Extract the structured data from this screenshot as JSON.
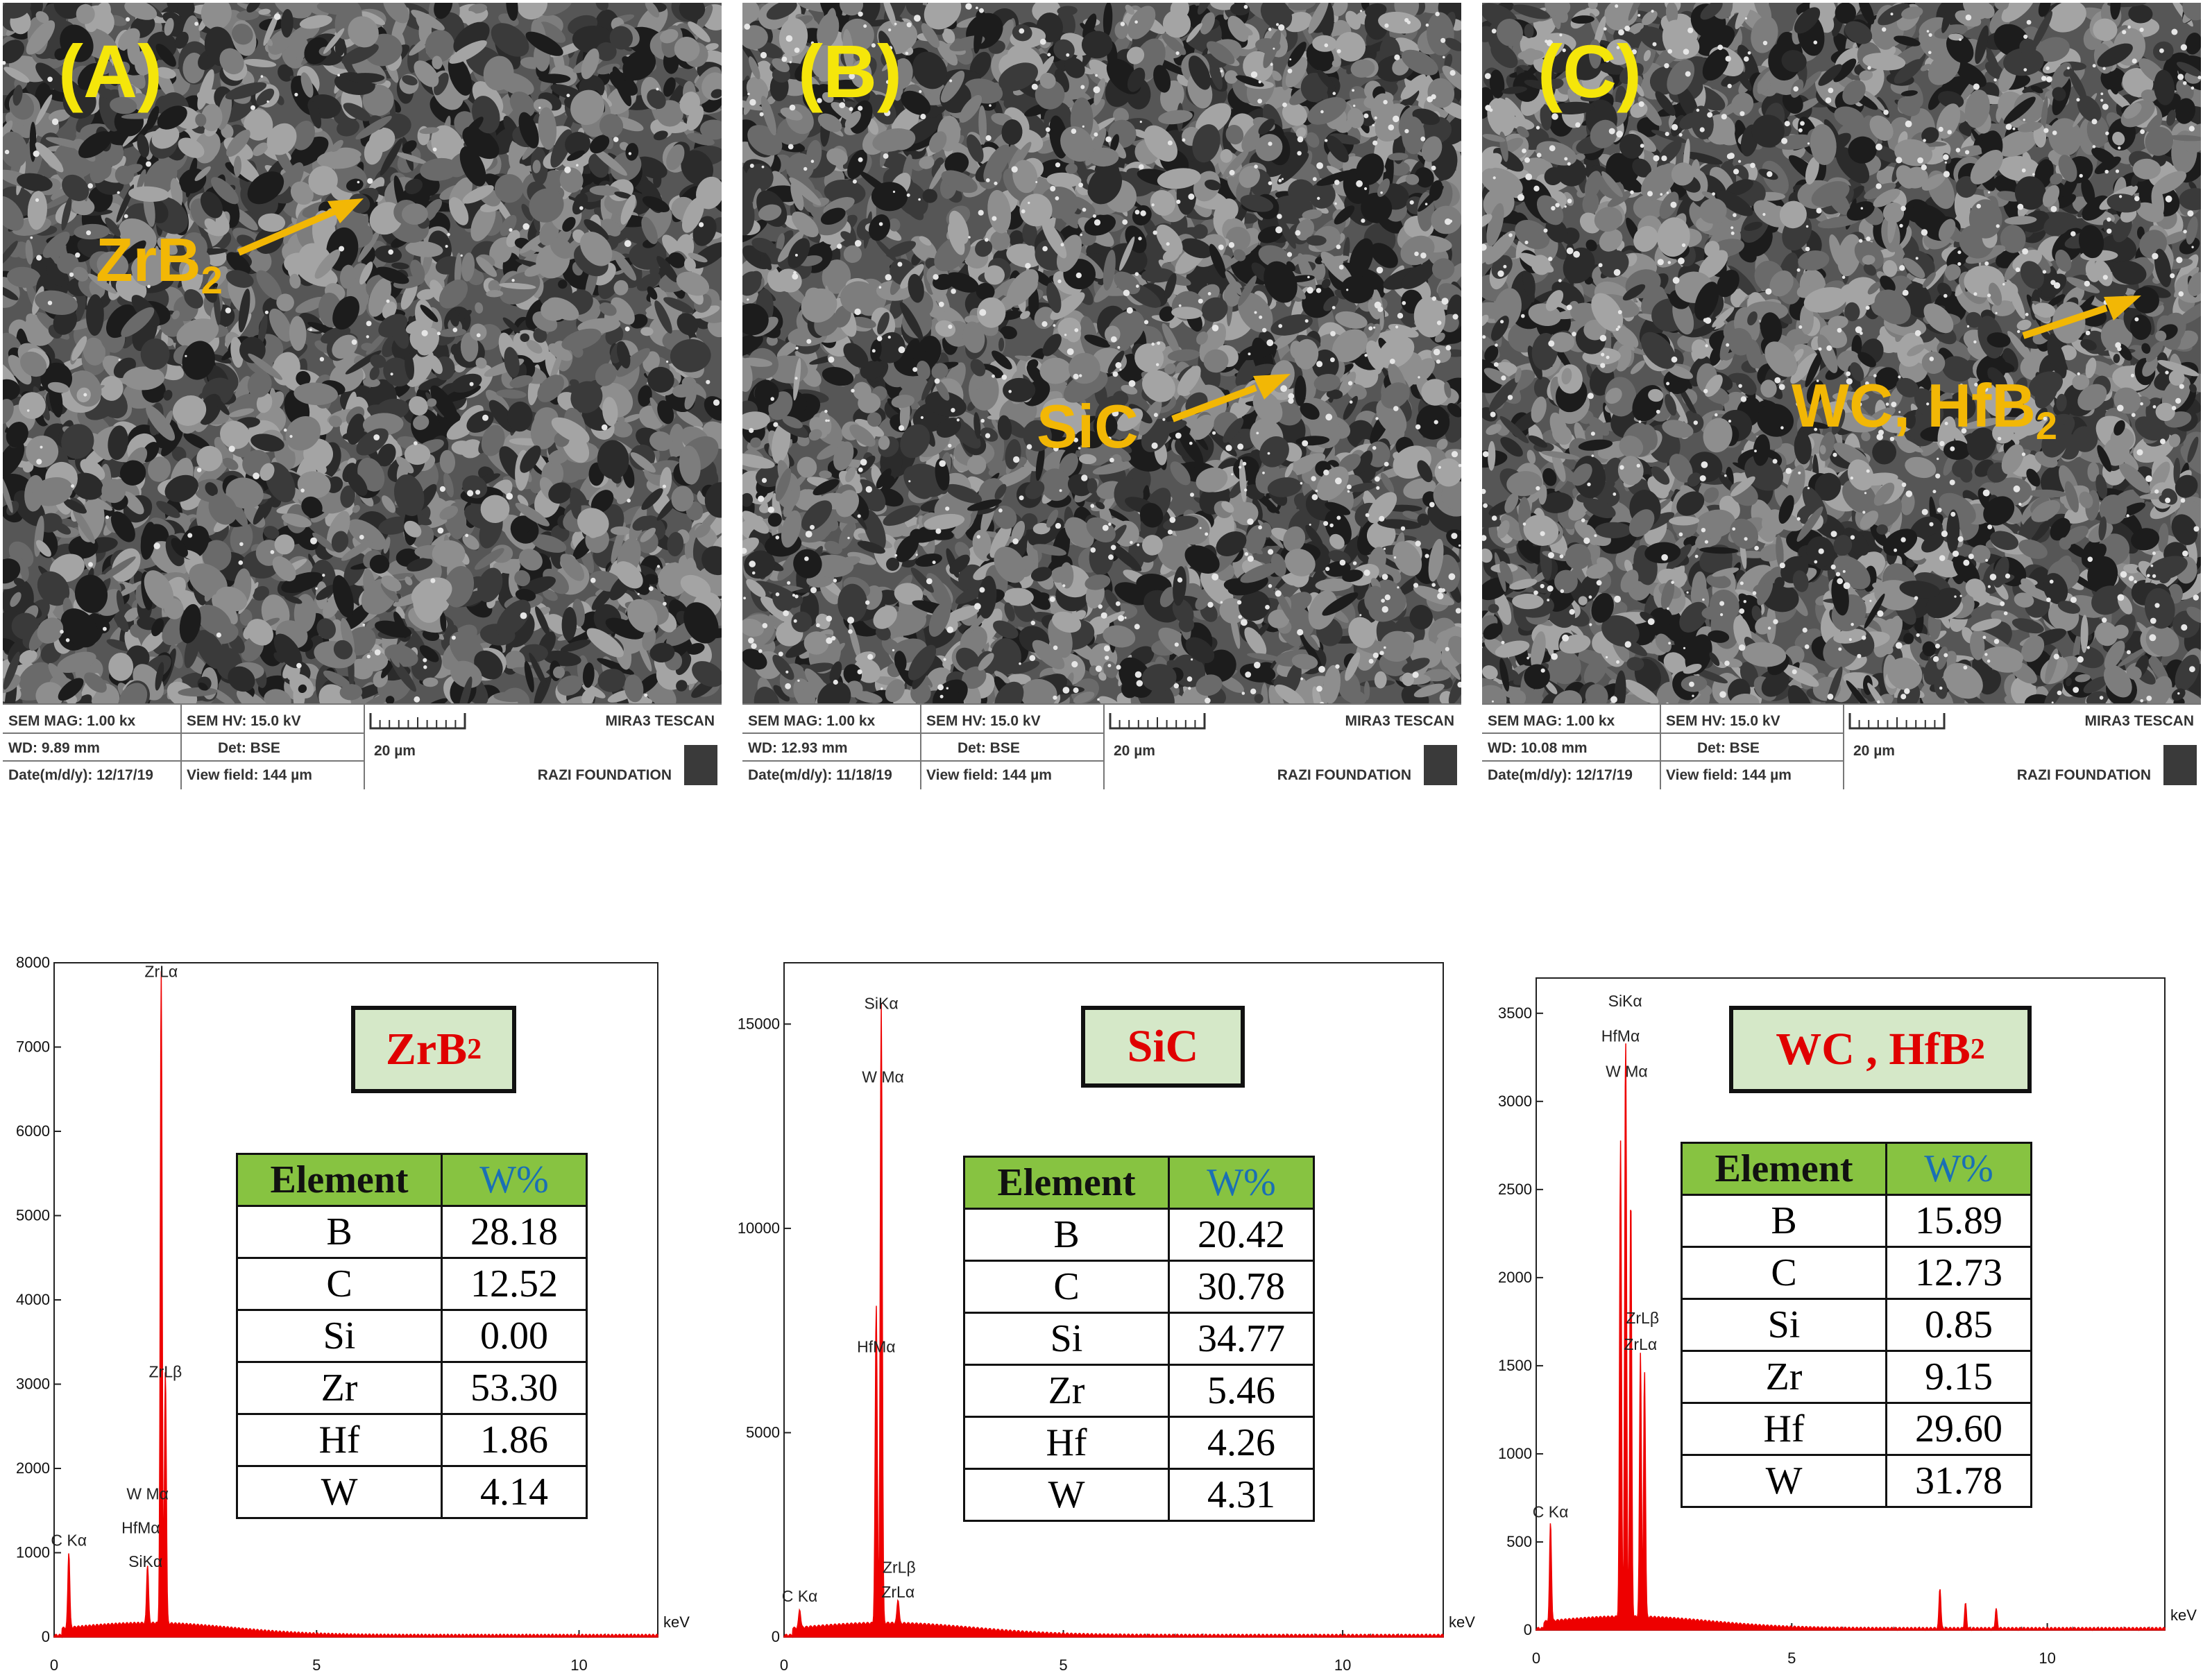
{
  "sem_panels": [
    {
      "letter": "(A)",
      "phase": "ZrB",
      "phase_sub": "2",
      "info": {
        "mag": "SEM MAG: 1.00 kx",
        "hv": "SEM HV: 15.0 kV",
        "wd": "WD: 9.89 mm",
        "det": "Det: BSE",
        "date": "Date(m/d/y): 12/17/19",
        "field": "View field: 144 µm",
        "scale": "20 µm",
        "brand1": "MIRA3 TESCAN",
        "brand2": "RAZI FOUNDATION"
      }
    },
    {
      "letter": "(B)",
      "phase": "SiC",
      "phase_sub": "",
      "info": {
        "mag": "SEM MAG: 1.00 kx",
        "hv": "SEM HV: 15.0 kV",
        "wd": "WD: 12.93 mm",
        "det": "Det: BSE",
        "date": "Date(m/d/y): 11/18/19",
        "field": "View field: 144 µm",
        "scale": "20 µm",
        "brand1": "MIRA3 TESCAN",
        "brand2": "RAZI FOUNDATION"
      }
    },
    {
      "letter": "(C)",
      "phase": "WC, HfB",
      "phase_sub": "2",
      "info": {
        "mag": "SEM MAG: 1.00 kx",
        "hv": "SEM HV: 15.0 kV",
        "wd": "WD: 10.08 mm",
        "det": "Det: BSE",
        "date": "Date(m/d/y): 12/17/19",
        "field": "View field: 144 µm",
        "scale": "20 µm",
        "brand1": "MIRA3 TESCAN",
        "brand2": "RAZI FOUNDATION"
      }
    }
  ],
  "chart_data": [
    {
      "type": "line",
      "xlabel": "keV",
      "xlim": [
        0,
        11.5
      ],
      "ylim": [
        0,
        8000
      ],
      "x_ticks": [
        0,
        5,
        10
      ],
      "y_ticks": [
        0,
        1000,
        2000,
        3000,
        4000,
        5000,
        6000,
        7000,
        8000
      ],
      "peaks": [
        {
          "x": 0.28,
          "y": 900
        },
        {
          "x": 1.78,
          "y": 700
        },
        {
          "x": 2.04,
          "y": 7750
        },
        {
          "x": 2.12,
          "y": 3000
        }
      ],
      "peak_labels": [
        {
          "text": "ZrLα",
          "x": 2.04,
          "y": 7750
        },
        {
          "text": "ZrLβ",
          "x": 2.12,
          "y": 3000
        },
        {
          "text": "W Mα",
          "x": 1.78,
          "y": 1550
        },
        {
          "text": "HfMα",
          "x": 1.65,
          "y": 1150
        },
        {
          "text": "SiKα",
          "x": 1.74,
          "y": 750
        },
        {
          "text": "C Kα",
          "x": 0.28,
          "y": 1000
        }
      ],
      "legend": {
        "text": "ZrB",
        "sub": "2"
      },
      "table": {
        "headers": [
          "Element",
          "W%"
        ],
        "rows": [
          [
            "B",
            "28.18"
          ],
          [
            "C",
            "12.52"
          ],
          [
            "Si",
            "0.00"
          ],
          [
            "Zr",
            "53.30"
          ],
          [
            "Hf",
            "1.86"
          ],
          [
            "W",
            "4.14"
          ]
        ]
      }
    },
    {
      "type": "line",
      "xlabel": "keV",
      "xlim": [
        0,
        11.8
      ],
      "ylim": [
        0,
        16500
      ],
      "x_ticks": [
        0,
        5,
        10
      ],
      "y_ticks": [
        0,
        5000,
        10000,
        15000
      ],
      "peaks": [
        {
          "x": 0.28,
          "y": 450
        },
        {
          "x": 1.65,
          "y": 7800
        },
        {
          "x": 1.74,
          "y": 15200
        },
        {
          "x": 2.04,
          "y": 600
        }
      ],
      "peak_labels": [
        {
          "text": "SiKα",
          "x": 1.74,
          "y": 15200
        },
        {
          "text": "W Mα",
          "x": 1.77,
          "y": 13400
        },
        {
          "text": "HfMα",
          "x": 1.65,
          "y": 6800
        },
        {
          "text": "ZrLβ",
          "x": 2.06,
          "y": 1400
        },
        {
          "text": "ZrLα",
          "x": 2.04,
          "y": 800
        },
        {
          "text": "C Kα",
          "x": 0.28,
          "y": 700
        }
      ],
      "legend": {
        "text": "SiC",
        "sub": ""
      },
      "table": {
        "headers": [
          "Element",
          "W%"
        ],
        "rows": [
          [
            "B",
            "20.42"
          ],
          [
            "C",
            "30.78"
          ],
          [
            "Si",
            "34.77"
          ],
          [
            "Zr",
            "5.46"
          ],
          [
            "Hf",
            "4.26"
          ],
          [
            "W",
            "4.31"
          ]
        ]
      }
    },
    {
      "type": "line",
      "xlabel": "keV",
      "xlim": [
        0,
        12.3
      ],
      "ylim": [
        0,
        3700
      ],
      "x_ticks": [
        0,
        5,
        10
      ],
      "y_ticks": [
        0,
        500,
        1000,
        1500,
        2000,
        2500,
        3000,
        3500
      ],
      "peaks": [
        {
          "x": 0.28,
          "y": 560
        },
        {
          "x": 1.65,
          "y": 2700
        },
        {
          "x": 1.75,
          "y": 3300
        },
        {
          "x": 1.85,
          "y": 2400
        },
        {
          "x": 2.04,
          "y": 1500
        },
        {
          "x": 2.12,
          "y": 1400
        },
        {
          "x": 7.9,
          "y": 230
        },
        {
          "x": 8.4,
          "y": 140
        },
        {
          "x": 9.0,
          "y": 110
        }
      ],
      "peak_labels": [
        {
          "text": "SiKα",
          "x": 1.74,
          "y": 3500
        },
        {
          "text": "HfMα",
          "x": 1.65,
          "y": 3300
        },
        {
          "text": "W Mα",
          "x": 1.77,
          "y": 3100
        },
        {
          "text": "ZrLβ",
          "x": 2.08,
          "y": 1700
        },
        {
          "text": "ZrLα",
          "x": 2.04,
          "y": 1550
        },
        {
          "text": "C Kα",
          "x": 0.28,
          "y": 600
        }
      ],
      "legend": {
        "text": "WC , HfB",
        "sub": "2"
      },
      "table": {
        "headers": [
          "Element",
          "W%"
        ],
        "rows": [
          [
            "B",
            "15.89"
          ],
          [
            "C",
            "12.73"
          ],
          [
            "Si",
            "0.85"
          ],
          [
            "Zr",
            "9.15"
          ],
          [
            "Hf",
            "29.60"
          ],
          [
            "W",
            "31.78"
          ]
        ]
      }
    }
  ]
}
